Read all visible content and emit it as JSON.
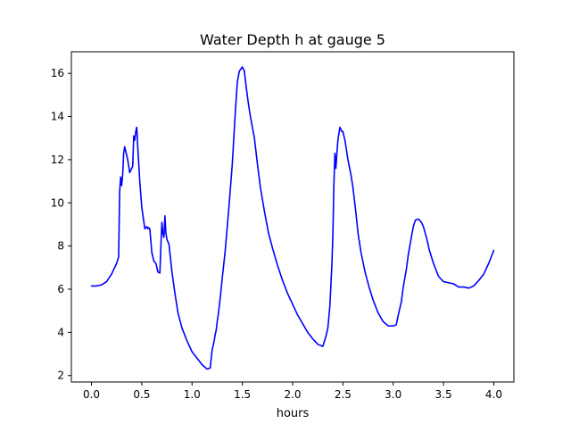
{
  "chart_data": {
    "type": "line",
    "title": "Water Depth h at gauge 5",
    "xlabel": "hours",
    "ylabel": "",
    "xlim": [
      -0.2,
      4.2
    ],
    "ylim": [
      1.7,
      17.0
    ],
    "xticks": [
      0.0,
      0.5,
      1.0,
      1.5,
      2.0,
      2.5,
      3.0,
      3.5,
      4.0
    ],
    "xtick_labels": [
      "0.0",
      "0.5",
      "1.0",
      "1.5",
      "2.0",
      "2.5",
      "3.0",
      "3.5",
      "4.0"
    ],
    "yticks": [
      2,
      4,
      6,
      8,
      10,
      12,
      14,
      16
    ],
    "ytick_labels": [
      "2",
      "4",
      "6",
      "8",
      "10",
      "12",
      "14",
      "16"
    ],
    "grid": false,
    "series": [
      {
        "color": "#0000ff",
        "x": [
          0.0,
          0.05,
          0.1,
          0.15,
          0.2,
          0.25,
          0.27,
          0.28,
          0.29,
          0.3,
          0.31,
          0.32,
          0.33,
          0.34,
          0.36,
          0.38,
          0.39,
          0.41,
          0.42,
          0.43,
          0.44,
          0.45,
          0.46,
          0.48,
          0.5,
          0.53,
          0.55,
          0.56,
          0.57,
          0.58,
          0.6,
          0.62,
          0.64,
          0.66,
          0.68,
          0.69,
          0.7,
          0.71,
          0.72,
          0.73,
          0.74,
          0.75,
          0.77,
          0.8,
          0.83,
          0.86,
          0.9,
          0.95,
          1.0,
          1.05,
          1.1,
          1.15,
          1.18,
          1.2,
          1.21,
          1.22,
          1.23,
          1.24,
          1.25,
          1.26,
          1.28,
          1.3,
          1.33,
          1.37,
          1.4,
          1.43,
          1.45,
          1.47,
          1.5,
          1.52,
          1.54,
          1.56,
          1.58,
          1.6,
          1.62,
          1.65,
          1.68,
          1.72,
          1.76,
          1.8,
          1.85,
          1.9,
          1.95,
          2.0,
          2.05,
          2.1,
          2.15,
          2.2,
          2.25,
          2.3,
          2.33,
          2.35,
          2.37,
          2.39,
          2.4,
          2.41,
          2.42,
          2.43,
          2.44,
          2.45,
          2.46,
          2.47,
          2.48,
          2.49,
          2.5,
          2.52,
          2.55,
          2.58,
          2.6,
          2.63,
          2.65,
          2.68,
          2.72,
          2.76,
          2.8,
          2.85,
          2.9,
          2.95,
          3.0,
          3.03,
          3.05,
          3.08,
          3.1,
          3.13,
          3.15,
          3.18,
          3.2,
          3.22,
          3.25,
          3.28,
          3.3,
          3.33,
          3.36,
          3.4,
          3.45,
          3.5,
          3.55,
          3.6,
          3.65,
          3.7,
          3.75,
          3.8,
          3.85,
          3.9,
          3.95,
          4.0
        ],
        "y": [
          6.15,
          6.15,
          6.2,
          6.35,
          6.7,
          7.2,
          7.5,
          10.5,
          11.2,
          10.8,
          11.3,
          12.3,
          12.6,
          12.4,
          12.0,
          11.4,
          11.5,
          11.7,
          13.1,
          12.9,
          13.3,
          13.5,
          12.6,
          11.0,
          9.8,
          8.8,
          8.9,
          8.8,
          8.85,
          8.8,
          7.7,
          7.3,
          7.2,
          6.8,
          6.75,
          8.0,
          9.1,
          8.6,
          8.4,
          9.4,
          8.6,
          8.3,
          8.1,
          6.8,
          5.8,
          4.9,
          4.2,
          3.6,
          3.1,
          2.8,
          2.5,
          2.3,
          2.35,
          3.2,
          3.4,
          3.6,
          3.9,
          4.1,
          4.5,
          4.8,
          5.6,
          6.5,
          7.8,
          10.0,
          11.8,
          14.2,
          15.6,
          16.1,
          16.3,
          16.1,
          15.3,
          14.6,
          14.0,
          13.5,
          13.0,
          11.8,
          10.7,
          9.6,
          8.6,
          7.9,
          7.1,
          6.4,
          5.8,
          5.3,
          4.8,
          4.4,
          4.0,
          3.7,
          3.45,
          3.35,
          3.8,
          4.2,
          5.2,
          7.1,
          8.5,
          10.8,
          12.3,
          11.6,
          12.3,
          12.9,
          13.2,
          13.5,
          13.4,
          13.3,
          13.3,
          12.9,
          12.0,
          11.3,
          10.7,
          9.5,
          8.6,
          7.7,
          6.8,
          6.1,
          5.5,
          4.9,
          4.5,
          4.3,
          4.3,
          4.35,
          4.8,
          5.4,
          6.1,
          6.9,
          7.6,
          8.4,
          8.9,
          9.2,
          9.25,
          9.1,
          8.9,
          8.4,
          7.8,
          7.2,
          6.6,
          6.35,
          6.3,
          6.25,
          6.1,
          6.1,
          6.05,
          6.15,
          6.4,
          6.7,
          7.2,
          7.8
        ]
      }
    ]
  }
}
